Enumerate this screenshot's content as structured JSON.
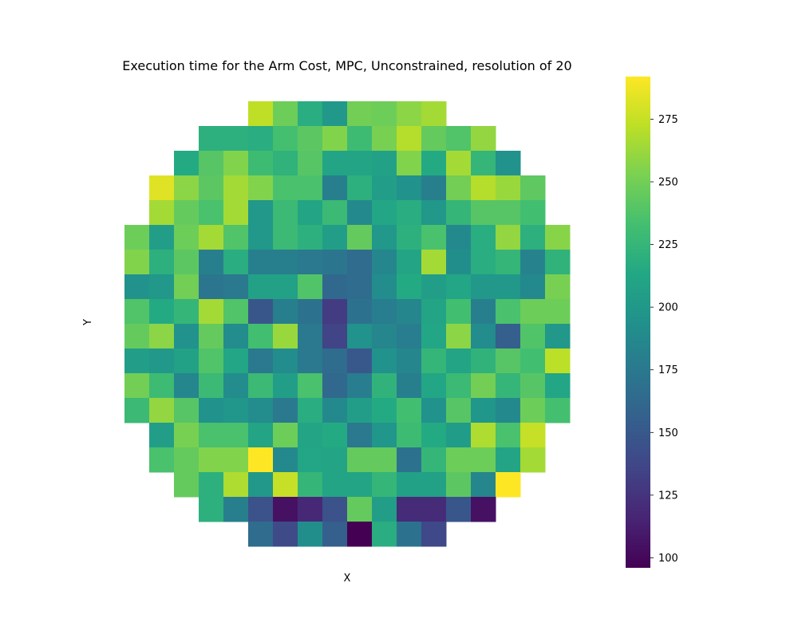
{
  "chart_data": {
    "type": "heatmap",
    "title": "Execution time for the Arm Cost, MPC, Unconstrained, resolution of 20",
    "xlabel": "X",
    "ylabel": "Y",
    "colormap": "viridis",
    "grid": false,
    "rows": 18,
    "cols": 18,
    "vmin": 96,
    "vmax": 292,
    "colorbar": {
      "ticks": [
        100,
        125,
        150,
        175,
        200,
        225,
        250,
        275
      ],
      "tick_labels": [
        "100",
        "125",
        "150",
        "175",
        "200",
        "225",
        "250",
        "275"
      ],
      "position": "right"
    },
    "values": [
      [
        null,
        null,
        null,
        null,
        null,
        273,
        248,
        218,
        200,
        250,
        248,
        258,
        265,
        null,
        null,
        null,
        null,
        null
      ],
      [
        null,
        null,
        null,
        220,
        220,
        218,
        233,
        242,
        255,
        230,
        252,
        270,
        245,
        238,
        260,
        null,
        null,
        null
      ],
      [
        null,
        null,
        215,
        240,
        255,
        230,
        222,
        240,
        210,
        210,
        208,
        255,
        215,
        265,
        225,
        195,
        null,
        null
      ],
      [
        null,
        283,
        258,
        242,
        265,
        255,
        235,
        235,
        180,
        220,
        205,
        195,
        180,
        250,
        270,
        262,
        243,
        null
      ],
      [
        null,
        265,
        245,
        235,
        265,
        200,
        228,
        210,
        228,
        188,
        212,
        218,
        200,
        225,
        240,
        240,
        232,
        null
      ],
      [
        248,
        205,
        248,
        265,
        238,
        200,
        228,
        220,
        205,
        245,
        200,
        220,
        235,
        188,
        218,
        260,
        220,
        257
      ],
      [
        255,
        220,
        242,
        180,
        218,
        180,
        180,
        175,
        173,
        165,
        185,
        210,
        265,
        192,
        218,
        225,
        183,
        222
      ],
      [
        195,
        200,
        250,
        172,
        175,
        208,
        208,
        238,
        163,
        165,
        190,
        215,
        205,
        212,
        200,
        200,
        188,
        252
      ],
      [
        238,
        215,
        225,
        265,
        238,
        148,
        180,
        170,
        130,
        170,
        178,
        185,
        210,
        232,
        180,
        235,
        248,
        248
      ],
      [
        245,
        258,
        195,
        245,
        190,
        232,
        262,
        175,
        135,
        195,
        185,
        178,
        212,
        258,
        190,
        155,
        238,
        200
      ],
      [
        205,
        200,
        208,
        238,
        212,
        175,
        190,
        175,
        165,
        150,
        195,
        185,
        225,
        210,
        222,
        240,
        232,
        272
      ],
      [
        250,
        230,
        185,
        228,
        190,
        228,
        205,
        235,
        162,
        178,
        222,
        180,
        212,
        228,
        250,
        225,
        240,
        212
      ],
      [
        228,
        260,
        240,
        195,
        198,
        190,
        175,
        218,
        188,
        205,
        215,
        232,
        195,
        240,
        198,
        188,
        248,
        233
      ],
      [
        null,
        205,
        252,
        235,
        235,
        210,
        248,
        210,
        215,
        175,
        198,
        230,
        215,
        203,
        268,
        235,
        275,
        null
      ],
      [
        null,
        235,
        245,
        255,
        255,
        292,
        188,
        212,
        210,
        245,
        245,
        170,
        225,
        248,
        248,
        210,
        265,
        null
      ],
      [
        null,
        null,
        245,
        220,
        268,
        200,
        275,
        225,
        210,
        210,
        225,
        208,
        208,
        242,
        185,
        292,
        null,
        null
      ],
      [
        null,
        null,
        null,
        220,
        180,
        145,
        105,
        118,
        145,
        245,
        205,
        120,
        120,
        148,
        105,
        null,
        null,
        null
      ],
      [
        null,
        null,
        null,
        null,
        null,
        165,
        140,
        192,
        155,
        96,
        218,
        170,
        138,
        null,
        null,
        null,
        null,
        null
      ]
    ]
  }
}
